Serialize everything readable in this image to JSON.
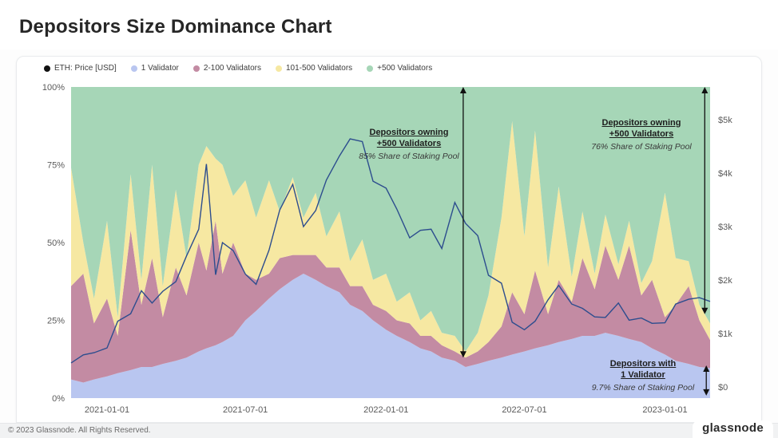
{
  "page": {
    "title": "Depositors Size Dominance Chart",
    "footer": {
      "copyright": "© 2023 Glassnode. All Rights Reserved.",
      "logo": "glassnode"
    }
  },
  "legend": [
    {
      "label": "ETH: Price [USD]",
      "color": "#111111"
    },
    {
      "label": "1 Validator",
      "color": "#b9c6f0"
    },
    {
      "label": "2-100 Validators",
      "color": "#c38ba3"
    },
    {
      "label": "101-500 Validators",
      "color": "#f6e8a2"
    },
    {
      "label": "+500 Validators",
      "color": "#a6d6b7"
    }
  ],
  "chart_data": {
    "type": "area",
    "stacked": true,
    "title": "Depositors Size Dominance Chart",
    "x": [
      "2020-11-15",
      "2020-12-01",
      "2020-12-15",
      "2021-01-01",
      "2021-01-15",
      "2021-02-01",
      "2021-02-15",
      "2021-03-01",
      "2021-03-15",
      "2021-04-01",
      "2021-04-15",
      "2021-05-01",
      "2021-05-11",
      "2021-05-23",
      "2021-06-01",
      "2021-06-15",
      "2021-07-01",
      "2021-07-15",
      "2021-08-01",
      "2021-08-15",
      "2021-09-01",
      "2021-09-15",
      "2021-10-01",
      "2021-10-15",
      "2021-11-01",
      "2021-11-15",
      "2021-12-01",
      "2021-12-15",
      "2022-01-01",
      "2022-01-15",
      "2022-02-01",
      "2022-02-15",
      "2022-03-01",
      "2022-03-15",
      "2022-04-01",
      "2022-04-15",
      "2022-05-01",
      "2022-05-15",
      "2022-06-01",
      "2022-06-15",
      "2022-07-01",
      "2022-07-15",
      "2022-08-01",
      "2022-08-15",
      "2022-09-01",
      "2022-09-15",
      "2022-10-01",
      "2022-10-15",
      "2022-11-01",
      "2022-11-15",
      "2022-12-01",
      "2022-12-15",
      "2023-01-01",
      "2023-01-15",
      "2023-02-01",
      "2023-02-15",
      "2023-03-01"
    ],
    "series": [
      {
        "name": "1 Validator",
        "color": "#b9c6f0",
        "values": [
          6,
          5,
          6,
          7,
          8,
          9,
          10,
          10,
          11,
          12,
          13,
          15,
          16,
          17,
          18,
          20,
          25,
          28,
          32,
          35,
          38,
          40,
          38,
          36,
          34,
          30,
          28,
          25,
          22,
          20,
          18,
          16,
          15,
          13,
          12,
          10,
          11,
          12,
          13,
          14,
          15,
          16,
          17,
          18,
          19,
          20,
          20,
          21,
          20,
          19,
          18,
          16,
          14,
          12,
          11,
          10,
          9.7
        ]
      },
      {
        "name": "2-100 Validators",
        "color": "#c38ba3",
        "values": [
          30,
          35,
          18,
          25,
          12,
          45,
          20,
          35,
          15,
          30,
          20,
          35,
          25,
          40,
          22,
          30,
          15,
          10,
          8,
          10,
          8,
          6,
          8,
          6,
          8,
          6,
          8,
          5,
          6,
          5,
          6,
          4,
          5,
          4,
          3,
          3,
          4,
          6,
          10,
          20,
          12,
          25,
          10,
          20,
          12,
          25,
          15,
          28,
          18,
          30,
          15,
          22,
          12,
          18,
          25,
          15,
          9
        ]
      },
      {
        "name": "101-500 Validators",
        "color": "#f6e8a2",
        "values": [
          38,
          10,
          8,
          25,
          6,
          18,
          8,
          30,
          10,
          25,
          12,
          25,
          40,
          20,
          35,
          15,
          30,
          20,
          30,
          15,
          25,
          12,
          20,
          10,
          18,
          8,
          15,
          8,
          12,
          6,
          10,
          5,
          8,
          4,
          5,
          2,
          6,
          15,
          35,
          55,
          25,
          45,
          15,
          30,
          8,
          15,
          5,
          10,
          5,
          8,
          4,
          6,
          40,
          15,
          8,
          5,
          5.3
        ]
      },
      {
        "name": "+500 Validators",
        "color": "#a6d6b7",
        "values": [
          26,
          50,
          68,
          43,
          74,
          28,
          62,
          25,
          64,
          33,
          55,
          25,
          19,
          23,
          25,
          35,
          30,
          42,
          30,
          40,
          29,
          42,
          34,
          48,
          40,
          56,
          49,
          62,
          60,
          69,
          66,
          75,
          72,
          79,
          80,
          85,
          79,
          67,
          42,
          11,
          48,
          14,
          58,
          32,
          61,
          40,
          60,
          41,
          57,
          43,
          63,
          56,
          34,
          55,
          56,
          70,
          76
        ]
      }
    ],
    "price": {
      "name": "ETH: Price [USD]",
      "color": "#2d4d8e",
      "values": [
        450,
        600,
        640,
        730,
        1230,
        1370,
        1800,
        1570,
        1790,
        1970,
        2450,
        2950,
        4170,
        2100,
        2700,
        2550,
        2110,
        1920,
        2560,
        3310,
        3790,
        3000,
        3300,
        3870,
        4320,
        4640,
        4590,
        3850,
        3720,
        3330,
        2790,
        2930,
        2950,
        2590,
        3450,
        3060,
        2830,
        2090,
        1940,
        1210,
        1070,
        1230,
        1630,
        1900,
        1550,
        1470,
        1310,
        1300,
        1570,
        1250,
        1290,
        1190,
        1200,
        1550,
        1640,
        1670,
        1600
      ]
    },
    "y_left": {
      "tick_values": [
        0,
        25,
        50,
        75,
        100
      ],
      "tick_labels": [
        "0%",
        "25%",
        "50%",
        "75%",
        "100%"
      ],
      "range": [
        0,
        100
      ]
    },
    "y_right": {
      "tick_values": [
        0,
        1000,
        2000,
        3000,
        4000,
        5000
      ],
      "tick_labels": [
        "$0",
        "$1k",
        "$2k",
        "$3k",
        "$4k",
        "$5k"
      ]
    },
    "x_ticks": [
      "2021-01-01",
      "2021-07-01",
      "2022-01-01",
      "2022-07-01",
      "2023-01-01"
    ],
    "annotations": [
      {
        "line1": "Depositors owning",
        "line2": "+500 Validators",
        "sub": "85% Share of Staking Pool",
        "arrow": {
          "x": "2022-04-12",
          "from_pct": 100,
          "to_pct": 13
        }
      },
      {
        "line1": "Depositors owning",
        "line2": "+500 Validators",
        "sub": "76% Share of Staking Pool",
        "arrow": {
          "x": "2023-02-22",
          "from_pct": 100,
          "to_pct": 27
        }
      },
      {
        "line1": "Depositors with",
        "line2": "1 Validator",
        "sub": "9.7% Share of Staking Pool",
        "arrow": {
          "x": "2023-02-24",
          "from_pct": 10.5,
          "to_pct": 0.8
        }
      }
    ]
  }
}
